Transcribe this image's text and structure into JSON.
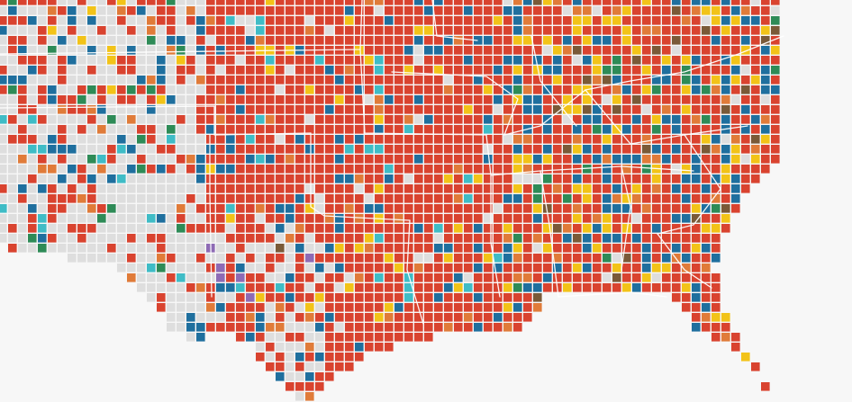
{
  "map": {
    "background_color": "#f7f7f7",
    "boundary_color": "#ffffff",
    "palette": {
      "red": "#d9432f",
      "blue": "#1f6f9e",
      "yellow": "#f2c318",
      "orange": "#e07b39",
      "green": "#2e8b57",
      "teal": "#3fbcc6",
      "brown": "#7a5a38",
      "purple": "#8e6bb5",
      "none": "#dedede"
    }
  }
}
